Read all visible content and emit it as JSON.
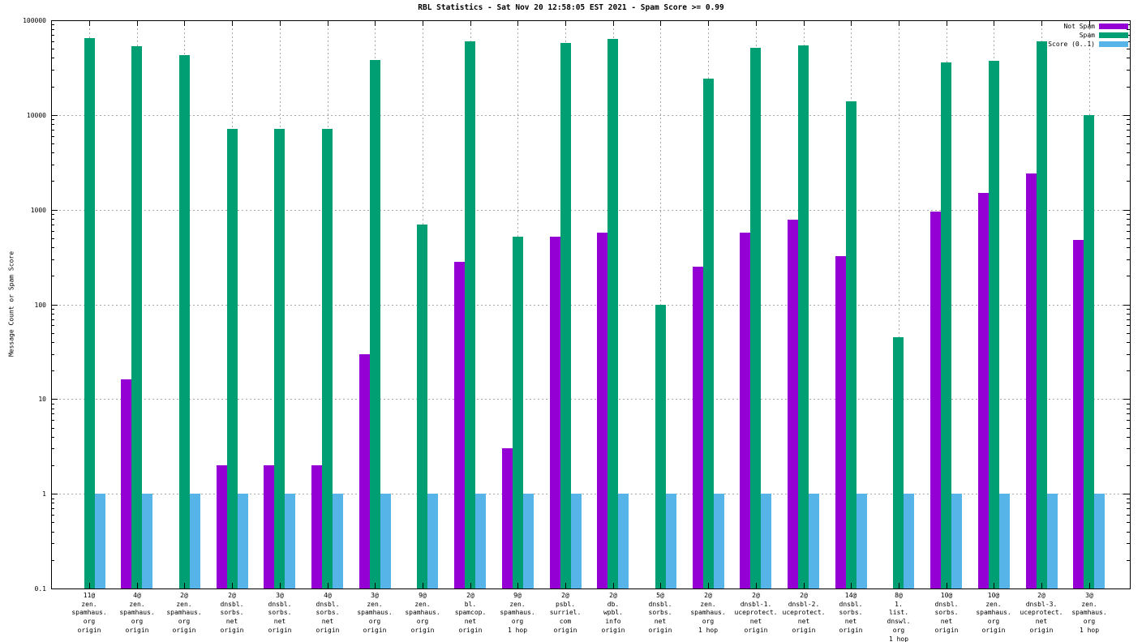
{
  "title": "RBL Statistics - Sat Nov 20 12:58:05 EST 2021 - Spam Score >= 0.99",
  "colors": {
    "not_spam": "#9400d3",
    "spam": "#009e73",
    "score": "#56b4e9",
    "grid": "#a8a8a8",
    "axis": "#000000",
    "background": "#ffffff"
  },
  "chart_data": {
    "type": "bar",
    "title": "RBL Statistics - Sat Nov 20 12:58:05 EST 2021 - Spam Score >= 0.99",
    "xlabel": "",
    "ylabel": "Message Count or Spam Score",
    "y_scale": "log",
    "ylim": [
      0.1,
      100000
    ],
    "y_tick_labels": [
      "100000",
      "10000",
      "1000",
      "100",
      "10",
      "1",
      "0.1"
    ],
    "grid": true,
    "legend_position": "top-right-inside",
    "categories": [
      [
        "11@",
        "zen.",
        "spamhaus.",
        "org",
        "origin"
      ],
      [
        "4@",
        "zen.",
        "spamhaus.",
        "org",
        "origin"
      ],
      [
        "2@",
        "zen.",
        "spamhaus.",
        "org",
        "origin"
      ],
      [
        "2@",
        "dnsbl.",
        "sorbs.",
        "net",
        "origin"
      ],
      [
        "3@",
        "dnsbl.",
        "sorbs.",
        "net",
        "origin"
      ],
      [
        "4@",
        "dnsbl.",
        "sorbs.",
        "net",
        "origin"
      ],
      [
        "3@",
        "zen.",
        "spamhaus.",
        "org",
        "origin"
      ],
      [
        "9@",
        "zen.",
        "spamhaus.",
        "org",
        "origin"
      ],
      [
        "2@",
        "bl.",
        "spamcop.",
        "net",
        "origin"
      ],
      [
        "9@",
        "zen.",
        "spamhaus.",
        "org",
        "1 hop"
      ],
      [
        "2@",
        "psbl.",
        "surriel.",
        "com",
        "origin"
      ],
      [
        "2@",
        "db.",
        "wpbl.",
        "info",
        "origin"
      ],
      [
        "5@",
        "dnsbl.",
        "sorbs.",
        "net",
        "origin"
      ],
      [
        "2@",
        "zen.",
        "spamhaus.",
        "org",
        "1 hop"
      ],
      [
        "2@",
        "dnsbl-1.",
        "uceprotect.",
        "net",
        "origin"
      ],
      [
        "2@",
        "dnsbl-2.",
        "uceprotect.",
        "net",
        "origin"
      ],
      [
        "14@",
        "dnsbl.",
        "sorbs.",
        "net",
        "origin"
      ],
      [
        "8@",
        "1.",
        "list.",
        "dnswl.",
        "org",
        "1 hop"
      ],
      [
        "10@",
        "dnsbl.",
        "sorbs.",
        "net",
        "origin"
      ],
      [
        "10@",
        "zen.",
        "spamhaus.",
        "org",
        "origin"
      ],
      [
        "2@",
        "dnsbl-3.",
        "uceprotect.",
        "net",
        "origin"
      ],
      [
        "3@",
        "zen.",
        "spamhaus.",
        "org",
        "1 hop"
      ]
    ],
    "series": [
      {
        "name": "Not Spam",
        "color": "#9400d3",
        "values": [
          0,
          16,
          0,
          2,
          2,
          2,
          30,
          0,
          280,
          3,
          520,
          575,
          0,
          250,
          570,
          790,
          320,
          0,
          950,
          1500,
          2400,
          480
        ]
      },
      {
        "name": "Spam",
        "color": "#009e73",
        "values": [
          65000,
          53000,
          43000,
          7200,
          7200,
          7200,
          38000,
          700,
          60000,
          520,
          58000,
          63000,
          100,
          24000,
          51000,
          54000,
          14000,
          45,
          36000,
          37000,
          60000,
          10000
        ]
      },
      {
        "name": "Score (0..1)",
        "color": "#56b4e9",
        "values": [
          1,
          1,
          1,
          1,
          1,
          1,
          1,
          1,
          1,
          1,
          1,
          1,
          1,
          1,
          1,
          1,
          1,
          1,
          1,
          1,
          1,
          1
        ]
      }
    ]
  }
}
